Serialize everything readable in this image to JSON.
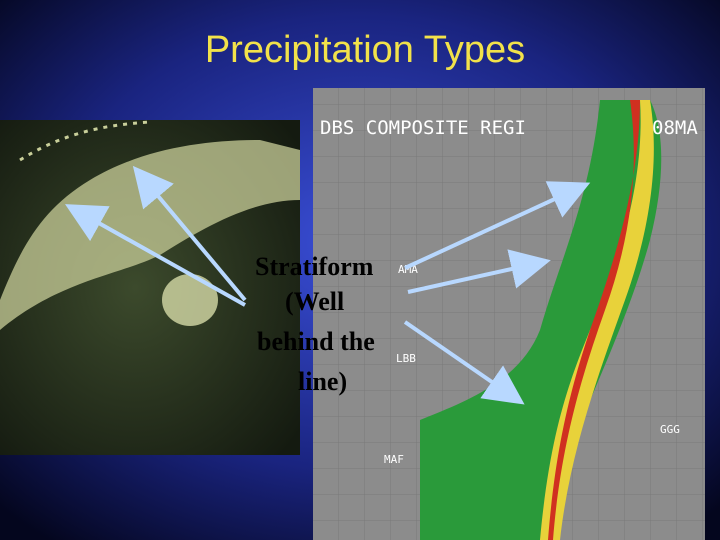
{
  "title": "Precipitation Types",
  "label": {
    "lines": [
      "Stratiform",
      "(Well",
      "behind the",
      "line)"
    ]
  },
  "map": {
    "labels": [
      "DBS COMPOSITE REGI",
      "08MA",
      "AMA",
      "LBB",
      "MAF",
      "GGG"
    ]
  }
}
